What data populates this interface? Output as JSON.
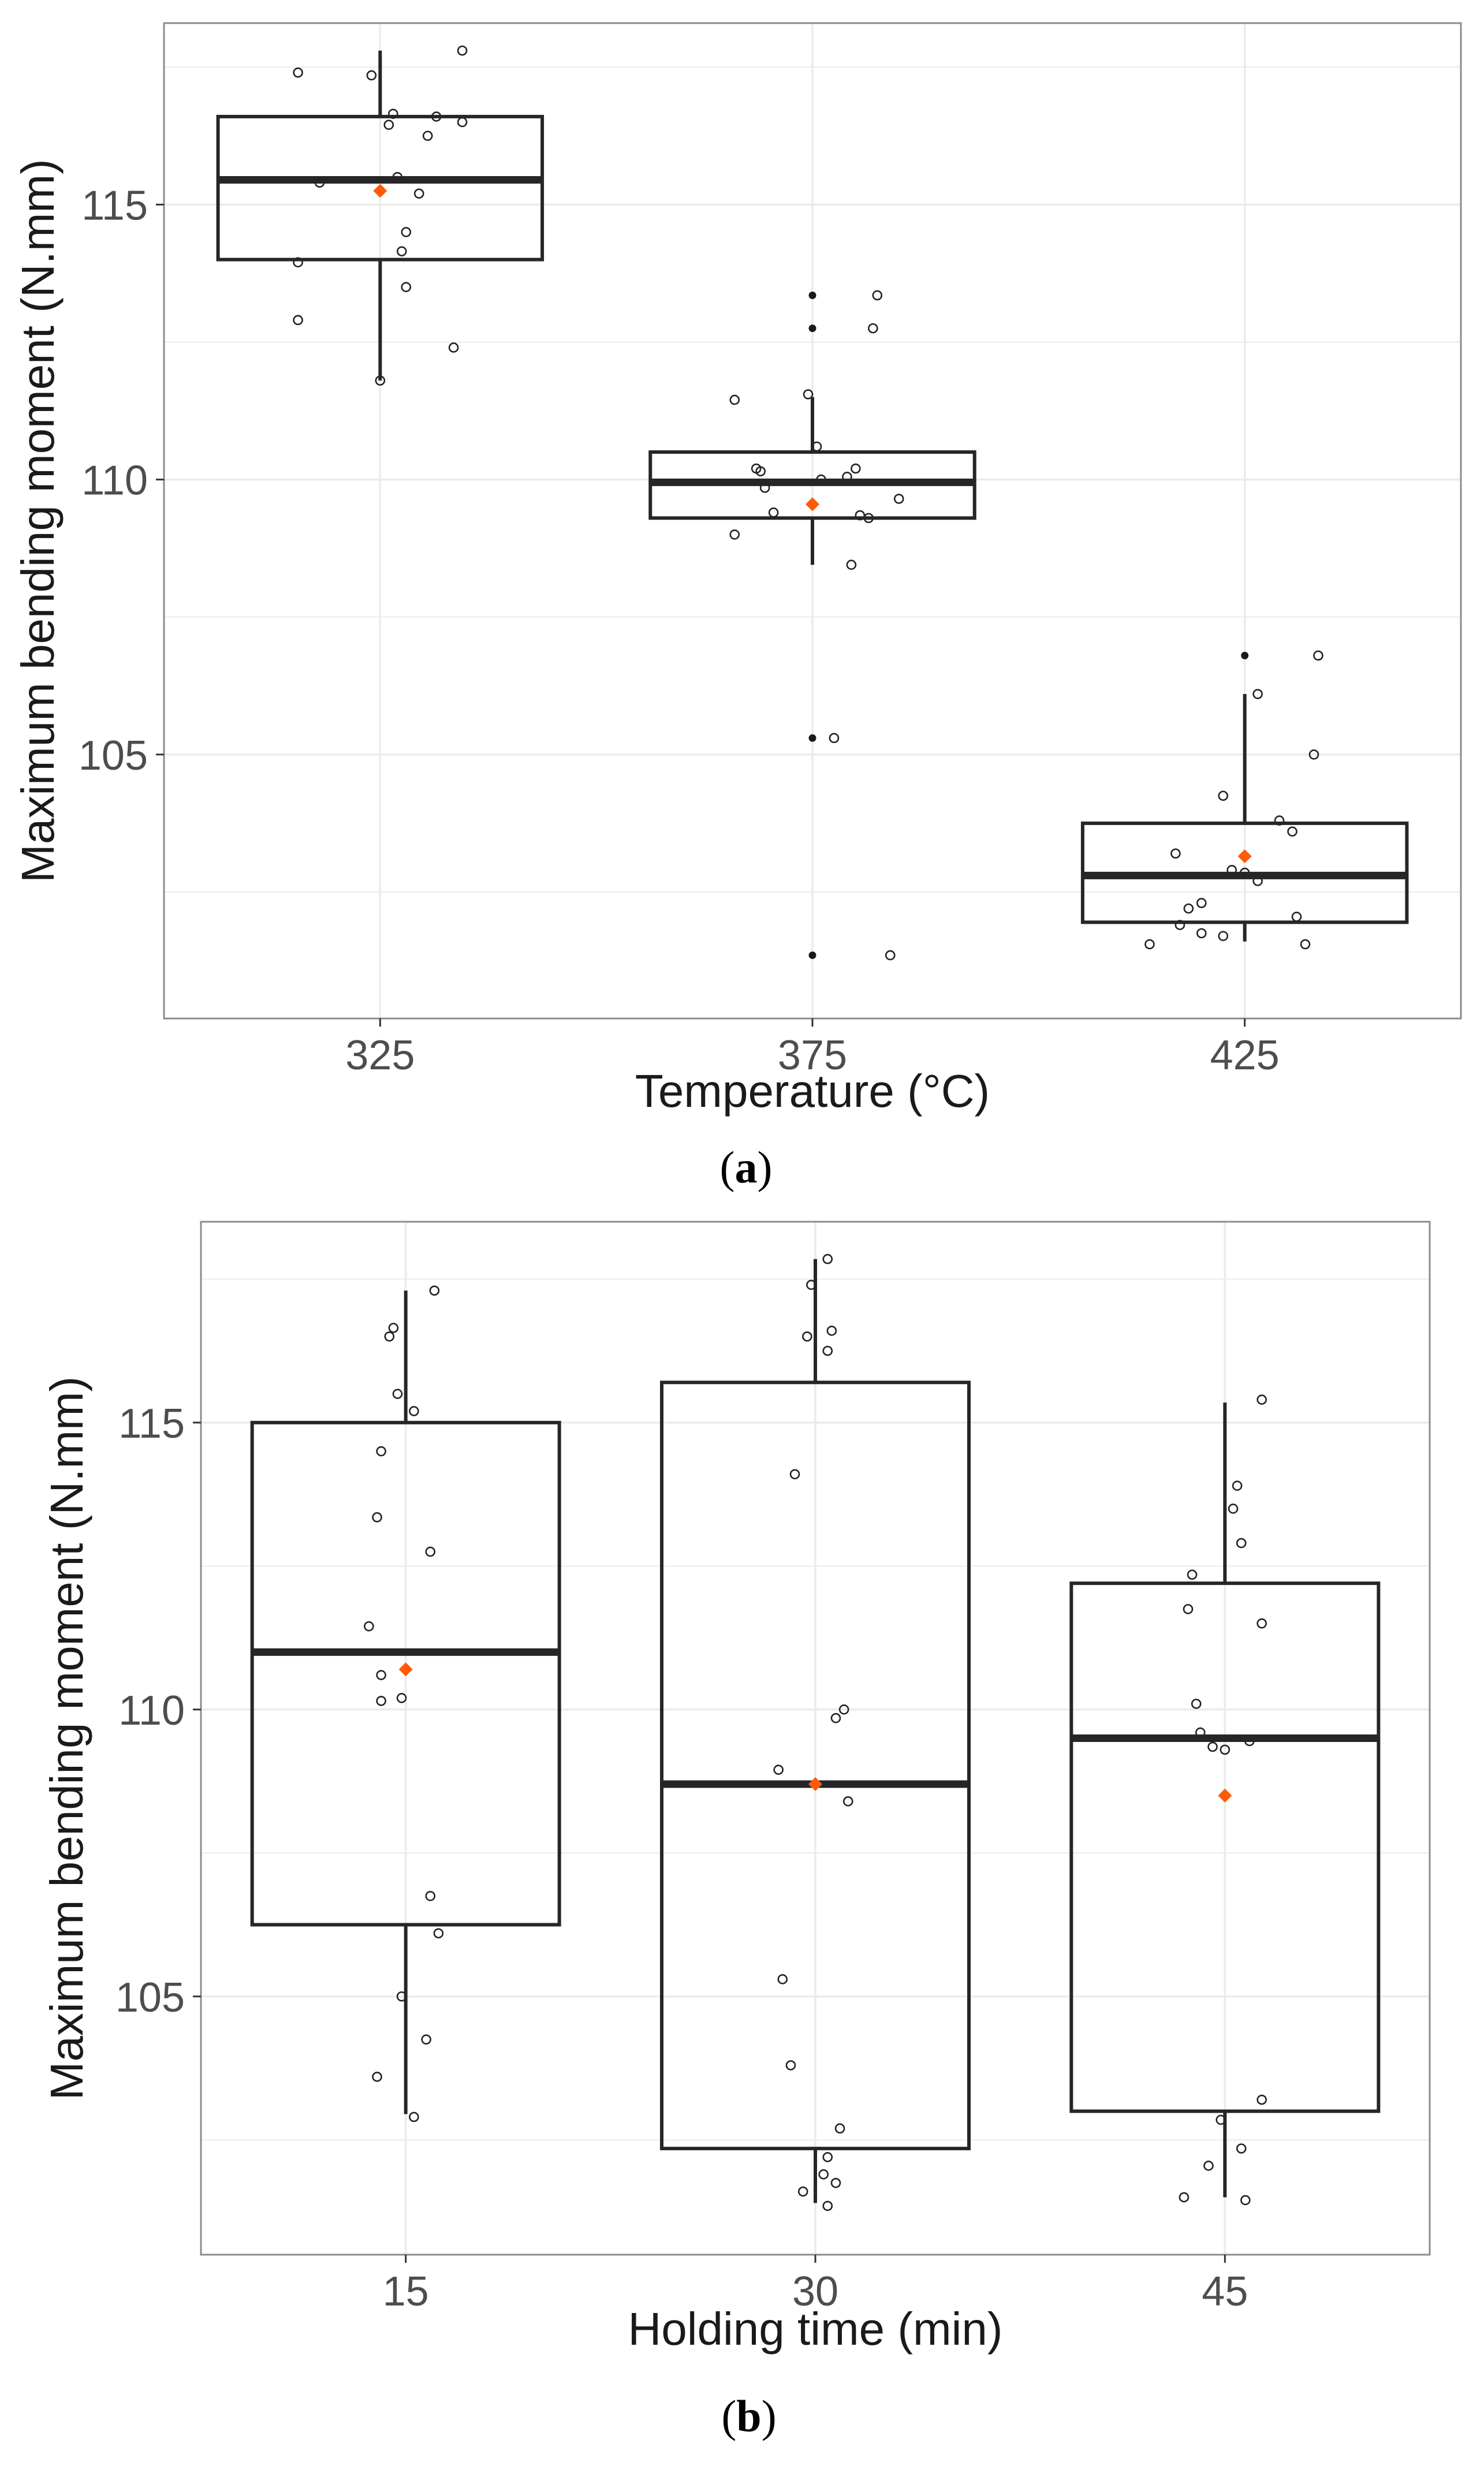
{
  "chart_data": [
    {
      "type": "boxplot",
      "panel_label": "a",
      "xlabel": "Temperature (°C)",
      "ylabel": "Maximum bending moment (N.mm)",
      "categories": [
        "325",
        "375",
        "425"
      ],
      "ylim": [
        100.2,
        118.3
      ],
      "y_ticks": [
        105,
        110,
        115
      ],
      "y_tick_labels": [
        "105",
        "110",
        "115"
      ],
      "boxes": [
        {
          "category": "325",
          "min": 111.8,
          "q1": 114.0,
          "median": 115.45,
          "q3": 116.6,
          "max": 117.8,
          "mean": 115.25,
          "outliers": []
        },
        {
          "category": "375",
          "min": 108.45,
          "q1": 109.3,
          "median": 109.95,
          "q3": 110.5,
          "max": 111.5,
          "mean": 109.55,
          "outliers": [
            113.35,
            112.75,
            105.3,
            101.35
          ]
        },
        {
          "category": "425",
          "min": 101.6,
          "q1": 101.95,
          "median": 102.8,
          "q3": 103.75,
          "max": 106.1,
          "mean": 103.15,
          "outliers": [
            106.8
          ]
        }
      ],
      "points": [
        {
          "category": "325",
          "offset": -0.19,
          "y": 117.4
        },
        {
          "category": "325",
          "offset": -0.02,
          "y": 117.35
        },
        {
          "category": "325",
          "offset": 0.19,
          "y": 117.8
        },
        {
          "category": "325",
          "offset": 0.03,
          "y": 116.65
        },
        {
          "category": "325",
          "offset": 0.13,
          "y": 116.6
        },
        {
          "category": "325",
          "offset": 0.19,
          "y": 116.5
        },
        {
          "category": "325",
          "offset": 0.02,
          "y": 116.45
        },
        {
          "category": "325",
          "offset": 0.11,
          "y": 116.25
        },
        {
          "category": "325",
          "offset": 0.04,
          "y": 115.5
        },
        {
          "category": "325",
          "offset": -0.14,
          "y": 115.4
        },
        {
          "category": "325",
          "offset": 0.09,
          "y": 115.2
        },
        {
          "category": "325",
          "offset": 0.06,
          "y": 114.5
        },
        {
          "category": "325",
          "offset": 0.05,
          "y": 114.15
        },
        {
          "category": "325",
          "offset": -0.19,
          "y": 113.95
        },
        {
          "category": "325",
          "offset": 0.06,
          "y": 113.5
        },
        {
          "category": "325",
          "offset": -0.19,
          "y": 112.9
        },
        {
          "category": "325",
          "offset": 0.17,
          "y": 112.4
        },
        {
          "category": "325",
          "offset": 0.0,
          "y": 111.8
        },
        {
          "category": "375",
          "offset": 0.15,
          "y": 113.35
        },
        {
          "category": "375",
          "offset": 0.14,
          "y": 112.75
        },
        {
          "category": "375",
          "offset": -0.18,
          "y": 111.45
        },
        {
          "category": "375",
          "offset": -0.01,
          "y": 111.55
        },
        {
          "category": "375",
          "offset": 0.01,
          "y": 110.6
        },
        {
          "category": "375",
          "offset": -0.13,
          "y": 110.2
        },
        {
          "category": "375",
          "offset": 0.1,
          "y": 110.2
        },
        {
          "category": "375",
          "offset": -0.12,
          "y": 110.15
        },
        {
          "category": "375",
          "offset": 0.08,
          "y": 110.05
        },
        {
          "category": "375",
          "offset": -0.11,
          "y": 109.85
        },
        {
          "category": "375",
          "offset": 0.02,
          "y": 110.0
        },
        {
          "category": "375",
          "offset": 0.2,
          "y": 109.65
        },
        {
          "category": "375",
          "offset": -0.09,
          "y": 109.4
        },
        {
          "category": "375",
          "offset": 0.11,
          "y": 109.35
        },
        {
          "category": "375",
          "offset": 0.13,
          "y": 109.3
        },
        {
          "category": "375",
          "offset": -0.18,
          "y": 109.0
        },
        {
          "category": "375",
          "offset": 0.09,
          "y": 108.45
        },
        {
          "category": "375",
          "offset": 0.05,
          "y": 105.3
        },
        {
          "category": "375",
          "offset": 0.18,
          "y": 101.35
        },
        {
          "category": "425",
          "offset": 0.17,
          "y": 106.8
        },
        {
          "category": "425",
          "offset": 0.03,
          "y": 106.1
        },
        {
          "category": "425",
          "offset": 0.16,
          "y": 105.0
        },
        {
          "category": "425",
          "offset": -0.05,
          "y": 104.25
        },
        {
          "category": "425",
          "offset": 0.08,
          "y": 103.8
        },
        {
          "category": "425",
          "offset": 0.11,
          "y": 103.6
        },
        {
          "category": "425",
          "offset": -0.16,
          "y": 103.2
        },
        {
          "category": "425",
          "offset": -0.03,
          "y": 102.9
        },
        {
          "category": "425",
          "offset": 0.0,
          "y": 102.85
        },
        {
          "category": "425",
          "offset": 0.03,
          "y": 102.7
        },
        {
          "category": "425",
          "offset": -0.1,
          "y": 102.3
        },
        {
          "category": "425",
          "offset": -0.13,
          "y": 102.2
        },
        {
          "category": "425",
          "offset": 0.12,
          "y": 102.05
        },
        {
          "category": "425",
          "offset": -0.15,
          "y": 101.9
        },
        {
          "category": "425",
          "offset": -0.1,
          "y": 101.75
        },
        {
          "category": "425",
          "offset": -0.05,
          "y": 101.7
        },
        {
          "category": "425",
          "offset": -0.22,
          "y": 101.55
        },
        {
          "category": "425",
          "offset": 0.14,
          "y": 101.55
        }
      ],
      "colors": {
        "mean": "#ff5a0a",
        "box": "#262626",
        "grid": "#ebebeb",
        "panel_border": "#8c8c8c"
      }
    },
    {
      "type": "boxplot",
      "panel_label": "b",
      "xlabel": "Holding time (min)",
      "ylabel": "Maximum bending moment (N.mm)",
      "categories": [
        "15",
        "30",
        "45"
      ],
      "ylim": [
        100.5,
        118.5
      ],
      "y_ticks": [
        105,
        110,
        115
      ],
      "y_tick_labels": [
        "105",
        "110",
        "115"
      ],
      "boxes": [
        {
          "category": "15",
          "min": 102.95,
          "q1": 106.25,
          "median": 111.0,
          "q3": 115.0,
          "max": 117.3,
          "mean": 110.7,
          "outliers": []
        },
        {
          "category": "30",
          "min": 101.4,
          "q1": 102.35,
          "median": 108.7,
          "q3": 115.7,
          "max": 117.85,
          "mean": 108.7,
          "outliers": []
        },
        {
          "category": "45",
          "min": 101.5,
          "q1": 103.0,
          "median": 109.5,
          "q3": 112.2,
          "max": 115.35,
          "mean": 108.5,
          "outliers": []
        }
      ],
      "points": [
        {
          "category": "15",
          "offset": 0.07,
          "y": 117.3
        },
        {
          "category": "15",
          "offset": -0.03,
          "y": 116.65
        },
        {
          "category": "15",
          "offset": -0.04,
          "y": 116.5
        },
        {
          "category": "15",
          "offset": -0.02,
          "y": 115.5
        },
        {
          "category": "15",
          "offset": 0.02,
          "y": 115.2
        },
        {
          "category": "15",
          "offset": -0.06,
          "y": 114.5
        },
        {
          "category": "15",
          "offset": -0.07,
          "y": 113.35
        },
        {
          "category": "15",
          "offset": 0.06,
          "y": 112.75
        },
        {
          "category": "15",
          "offset": -0.09,
          "y": 111.45
        },
        {
          "category": "15",
          "offset": -0.06,
          "y": 110.6
        },
        {
          "category": "15",
          "offset": -0.06,
          "y": 110.15
        },
        {
          "category": "15",
          "offset": -0.01,
          "y": 110.2
        },
        {
          "category": "15",
          "offset": 0.06,
          "y": 106.75
        },
        {
          "category": "15",
          "offset": 0.08,
          "y": 106.1
        },
        {
          "category": "15",
          "offset": -0.01,
          "y": 105.0
        },
        {
          "category": "15",
          "offset": 0.05,
          "y": 104.25
        },
        {
          "category": "15",
          "offset": -0.07,
          "y": 103.6
        },
        {
          "category": "15",
          "offset": 0.02,
          "y": 102.9
        },
        {
          "category": "30",
          "offset": 0.03,
          "y": 117.85
        },
        {
          "category": "30",
          "offset": -0.01,
          "y": 117.4
        },
        {
          "category": "30",
          "offset": 0.04,
          "y": 116.6
        },
        {
          "category": "30",
          "offset": -0.02,
          "y": 116.5
        },
        {
          "category": "30",
          "offset": 0.03,
          "y": 116.25
        },
        {
          "category": "30",
          "offset": -0.05,
          "y": 114.1
        },
        {
          "category": "30",
          "offset": 0.07,
          "y": 110.0
        },
        {
          "category": "30",
          "offset": 0.05,
          "y": 109.85
        },
        {
          "category": "30",
          "offset": -0.09,
          "y": 108.95
        },
        {
          "category": "30",
          "offset": 0.08,
          "y": 108.4
        },
        {
          "category": "30",
          "offset": -0.08,
          "y": 105.3
        },
        {
          "category": "30",
          "offset": -0.06,
          "y": 103.8
        },
        {
          "category": "30",
          "offset": 0.06,
          "y": 102.7
        },
        {
          "category": "30",
          "offset": 0.03,
          "y": 102.2
        },
        {
          "category": "30",
          "offset": 0.02,
          "y": 101.9
        },
        {
          "category": "30",
          "offset": 0.05,
          "y": 101.75
        },
        {
          "category": "30",
          "offset": -0.03,
          "y": 101.6
        },
        {
          "category": "30",
          "offset": 0.03,
          "y": 101.35
        },
        {
          "category": "45",
          "offset": 0.09,
          "y": 115.4
        },
        {
          "category": "45",
          "offset": 0.03,
          "y": 113.9
        },
        {
          "category": "45",
          "offset": 0.02,
          "y": 113.5
        },
        {
          "category": "45",
          "offset": 0.04,
          "y": 112.9
        },
        {
          "category": "45",
          "offset": -0.08,
          "y": 112.35
        },
        {
          "category": "45",
          "offset": -0.09,
          "y": 111.75
        },
        {
          "category": "45",
          "offset": 0.09,
          "y": 111.5
        },
        {
          "category": "45",
          "offset": -0.07,
          "y": 110.1
        },
        {
          "category": "45",
          "offset": -0.06,
          "y": 109.6
        },
        {
          "category": "45",
          "offset": 0.06,
          "y": 109.45
        },
        {
          "category": "45",
          "offset": -0.03,
          "y": 109.35
        },
        {
          "category": "45",
          "offset": 0.0,
          "y": 109.3
        },
        {
          "category": "45",
          "offset": 0.09,
          "y": 103.2
        },
        {
          "category": "45",
          "offset": -0.01,
          "y": 102.85
        },
        {
          "category": "45",
          "offset": 0.04,
          "y": 102.35
        },
        {
          "category": "45",
          "offset": -0.04,
          "y": 102.05
        },
        {
          "category": "45",
          "offset": -0.1,
          "y": 101.5
        },
        {
          "category": "45",
          "offset": 0.05,
          "y": 101.45
        }
      ],
      "colors": {
        "mean": "#ff5a0a",
        "box": "#262626",
        "grid": "#ebebeb",
        "panel_border": "#8c8c8c"
      }
    }
  ]
}
